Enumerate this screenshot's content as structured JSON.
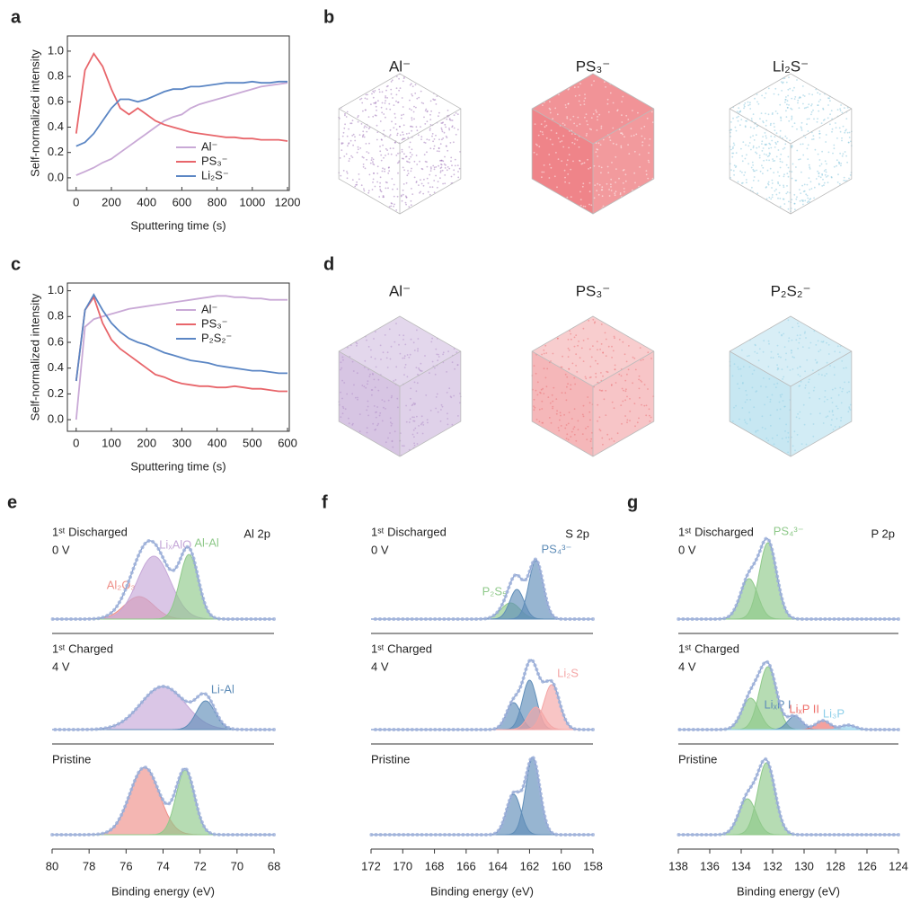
{
  "chart_data": [
    {
      "type": "line",
      "panel": "a",
      "xlabel": "Sputtering time (s)",
      "ylabel": "Self-normalized intensity",
      "legend": "lower right",
      "x": [
        0,
        50,
        100,
        150,
        200,
        250,
        300,
        350,
        400,
        450,
        500,
        550,
        600,
        650,
        700,
        750,
        800,
        850,
        900,
        950,
        1000,
        1050,
        1100,
        1150,
        1200
      ],
      "series": [
        {
          "name": "Al⁻",
          "color": "#c9a9d6",
          "values": [
            0.02,
            0.05,
            0.08,
            0.12,
            0.15,
            0.2,
            0.25,
            0.3,
            0.35,
            0.4,
            0.45,
            0.48,
            0.5,
            0.55,
            0.58,
            0.6,
            0.62,
            0.64,
            0.66,
            0.68,
            0.7,
            0.72,
            0.73,
            0.74,
            0.75
          ]
        },
        {
          "name": "PS₃⁻",
          "color": "#e8666b",
          "values": [
            0.35,
            0.85,
            0.98,
            0.88,
            0.7,
            0.55,
            0.5,
            0.55,
            0.5,
            0.45,
            0.42,
            0.4,
            0.38,
            0.36,
            0.35,
            0.34,
            0.33,
            0.32,
            0.32,
            0.31,
            0.31,
            0.3,
            0.3,
            0.3,
            0.29
          ]
        },
        {
          "name": "Li₂S⁻",
          "color": "#5b86c4",
          "values": [
            0.25,
            0.28,
            0.35,
            0.45,
            0.55,
            0.62,
            0.62,
            0.6,
            0.62,
            0.65,
            0.68,
            0.7,
            0.7,
            0.72,
            0.72,
            0.73,
            0.74,
            0.75,
            0.75,
            0.75,
            0.76,
            0.75,
            0.75,
            0.76,
            0.76
          ]
        }
      ],
      "xlim": [
        -50,
        1210
      ],
      "ylim": [
        -0.1,
        1.12
      ],
      "xticks": [
        0,
        200,
        400,
        600,
        800,
        1000,
        1200
      ],
      "yticks": [
        {
          "value": 0,
          "label": "0.0"
        },
        0.2,
        0.4,
        0.6,
        0.8,
        {
          "value": 1,
          "label": "1.0"
        }
      ]
    },
    {
      "type": "line",
      "panel": "c",
      "xlabel": "Sputtering time (s)",
      "ylabel": "Self-normalized intensity",
      "legend": "upper right",
      "x": [
        0,
        25,
        50,
        75,
        100,
        125,
        150,
        175,
        200,
        225,
        250,
        275,
        300,
        325,
        350,
        375,
        400,
        425,
        450,
        475,
        500,
        525,
        550,
        575,
        600
      ],
      "series": [
        {
          "name": "Al⁻",
          "color": "#c9a9d6",
          "values": [
            0.0,
            0.72,
            0.78,
            0.8,
            0.82,
            0.84,
            0.86,
            0.87,
            0.88,
            0.89,
            0.9,
            0.91,
            0.92,
            0.93,
            0.94,
            0.95,
            0.96,
            0.96,
            0.95,
            0.95,
            0.94,
            0.94,
            0.93,
            0.93,
            0.93
          ]
        },
        {
          "name": "PS₃⁻",
          "color": "#e8666b",
          "values": [
            0.3,
            0.85,
            0.95,
            0.75,
            0.62,
            0.55,
            0.5,
            0.45,
            0.4,
            0.35,
            0.33,
            0.3,
            0.28,
            0.27,
            0.26,
            0.26,
            0.25,
            0.25,
            0.26,
            0.25,
            0.24,
            0.24,
            0.23,
            0.22,
            0.22
          ]
        },
        {
          "name": "P₂S₂⁻",
          "color": "#5b86c4",
          "values": [
            0.3,
            0.85,
            0.97,
            0.85,
            0.75,
            0.68,
            0.63,
            0.6,
            0.58,
            0.55,
            0.52,
            0.5,
            0.48,
            0.46,
            0.45,
            0.44,
            0.42,
            0.41,
            0.4,
            0.39,
            0.38,
            0.38,
            0.37,
            0.36,
            0.36
          ]
        }
      ],
      "xlim": [
        -25,
        605
      ],
      "ylim": [
        -0.09,
        1.06
      ],
      "xticks": [
        0,
        100,
        200,
        300,
        400,
        500,
        600
      ],
      "yticks": [
        {
          "value": 0,
          "label": "0.0"
        },
        0.2,
        0.4,
        0.6,
        0.8,
        {
          "value": 1,
          "label": "1.0"
        }
      ]
    },
    {
      "type": "xps",
      "panel": "e",
      "xlabel": "Binding energy (eV)",
      "core": "Al 2p",
      "xlim": [
        80,
        68
      ],
      "xticks": [
        80,
        78,
        76,
        74,
        72,
        70,
        68
      ],
      "spectra": [
        {
          "state": "1ˢᵗ Discharged",
          "voltage": "0 V",
          "peaks": [
            {
              "label": "Al₂O₃",
              "center": 75.3,
              "height": 0.25,
              "width": 0.8,
              "color": "#ee8f88"
            },
            {
              "label": "LiₓAlO",
              "center": 74.5,
              "height": 0.7,
              "width": 0.9,
              "color": "#c6a8d8"
            },
            {
              "label": "Al-Al",
              "center": 72.6,
              "height": 0.72,
              "width": 0.5,
              "color": "#8fc98a"
            }
          ]
        },
        {
          "state": "1ˢᵗ Charged",
          "voltage": "4 V",
          "peaks": [
            {
              "center": 74.0,
              "height": 0.48,
              "width": 1.2,
              "color": "#c6a8d8"
            },
            {
              "label": "Li-Al",
              "center": 71.7,
              "height": 0.32,
              "width": 0.5,
              "color": "#5f8db8"
            }
          ]
        },
        {
          "state": "Pristine",
          "peaks": [
            {
              "center": 75.0,
              "height": 0.75,
              "width": 0.8,
              "color": "#ee8f88"
            },
            {
              "center": 72.8,
              "height": 0.72,
              "width": 0.5,
              "color": "#8fc98a"
            }
          ]
        }
      ]
    },
    {
      "type": "xps",
      "panel": "f",
      "xlabel": "Binding energy (eV)",
      "core": "S 2p",
      "xlim": [
        172,
        158
      ],
      "xticks": [
        172,
        170,
        168,
        166,
        164,
        162,
        160,
        158
      ],
      "spectra": [
        {
          "state": "1ˢᵗ Discharged",
          "voltage": "0 V",
          "peaks": [
            {
              "label": "P₂S₅",
              "center": 163.2,
              "height": 0.18,
              "width": 0.6,
              "color": "#8fc98a"
            },
            {
              "center": 162.8,
              "height": 0.33,
              "width": 0.45,
              "color": "#5f8db8"
            },
            {
              "label": "PS₄³⁻",
              "center": 161.6,
              "height": 0.65,
              "width": 0.45,
              "color": "#5f8db8"
            }
          ]
        },
        {
          "state": "1ˢᵗ Charged",
          "voltage": "4 V",
          "peaks": [
            {
              "center": 163.0,
              "height": 0.3,
              "width": 0.45,
              "color": "#5f8db8"
            },
            {
              "center": 162.0,
              "height": 0.55,
              "width": 0.45,
              "color": "#5f8db8"
            },
            {
              "center": 161.6,
              "height": 0.25,
              "width": 0.5,
              "color": "#f4a6a6"
            },
            {
              "label": "Li₂S",
              "center": 160.6,
              "height": 0.5,
              "width": 0.5,
              "color": "#f4a6a6"
            }
          ]
        },
        {
          "state": "Pristine",
          "peaks": [
            {
              "center": 163.0,
              "height": 0.45,
              "width": 0.45,
              "color": "#5f8db8"
            },
            {
              "center": 161.8,
              "height": 0.85,
              "width": 0.45,
              "color": "#5f8db8"
            }
          ]
        }
      ]
    },
    {
      "type": "xps",
      "panel": "g",
      "xlabel": "Binding energy (eV)",
      "core": "P 2p",
      "xlim": [
        138,
        124
      ],
      "xticks": [
        138,
        136,
        134,
        132,
        130,
        128,
        126,
        124
      ],
      "spectra": [
        {
          "state": "1ˢᵗ Discharged",
          "voltage": "0 V",
          "peaks": [
            {
              "center": 133.5,
              "height": 0.45,
              "width": 0.55,
              "color": "#8fc98a"
            },
            {
              "label": "PS₄³⁻",
              "center": 132.3,
              "height": 0.85,
              "width": 0.55,
              "color": "#8fc98a"
            }
          ]
        },
        {
          "state": "1ˢᵗ Charged",
          "voltage": "4 V",
          "peaks": [
            {
              "center": 133.4,
              "height": 0.35,
              "width": 0.55,
              "color": "#8fc98a"
            },
            {
              "center": 132.3,
              "height": 0.7,
              "width": 0.55,
              "color": "#8fc98a"
            },
            {
              "label": "LiₓP I",
              "center": 130.6,
              "height": 0.15,
              "width": 0.45,
              "color": "#5f8db8"
            },
            {
              "label": "LiₓP II",
              "center": 128.8,
              "height": 0.1,
              "width": 0.45,
              "color": "#ee6f6a"
            },
            {
              "label": "Li₃P",
              "center": 127.2,
              "height": 0.05,
              "width": 0.45,
              "color": "#8fd0ea"
            }
          ]
        },
        {
          "state": "Pristine",
          "peaks": [
            {
              "center": 133.6,
              "height": 0.4,
              "width": 0.55,
              "color": "#8fc98a"
            },
            {
              "center": 132.4,
              "height": 0.8,
              "width": 0.55,
              "color": "#8fc98a"
            }
          ]
        }
      ]
    }
  ],
  "tomography": [
    {
      "panel": "b",
      "cubes": [
        {
          "title": "Al⁻",
          "color": "#9b6fb5",
          "fill": "sparse"
        },
        {
          "title": "PS₃⁻",
          "color": "#ec6f74",
          "fill": "solid"
        },
        {
          "title": "Li₂S⁻",
          "color": "#7fc3dc",
          "fill": "sparse"
        }
      ]
    },
    {
      "panel": "d",
      "cubes": [
        {
          "title": "Al⁻",
          "color": "#b08cc8",
          "fill": "dense"
        },
        {
          "title": "PS₃⁻",
          "color": "#ec6f74",
          "fill": "dense"
        },
        {
          "title": "P₂S₂⁻",
          "color": "#8fcfe6",
          "fill": "dense"
        }
      ]
    }
  ]
}
